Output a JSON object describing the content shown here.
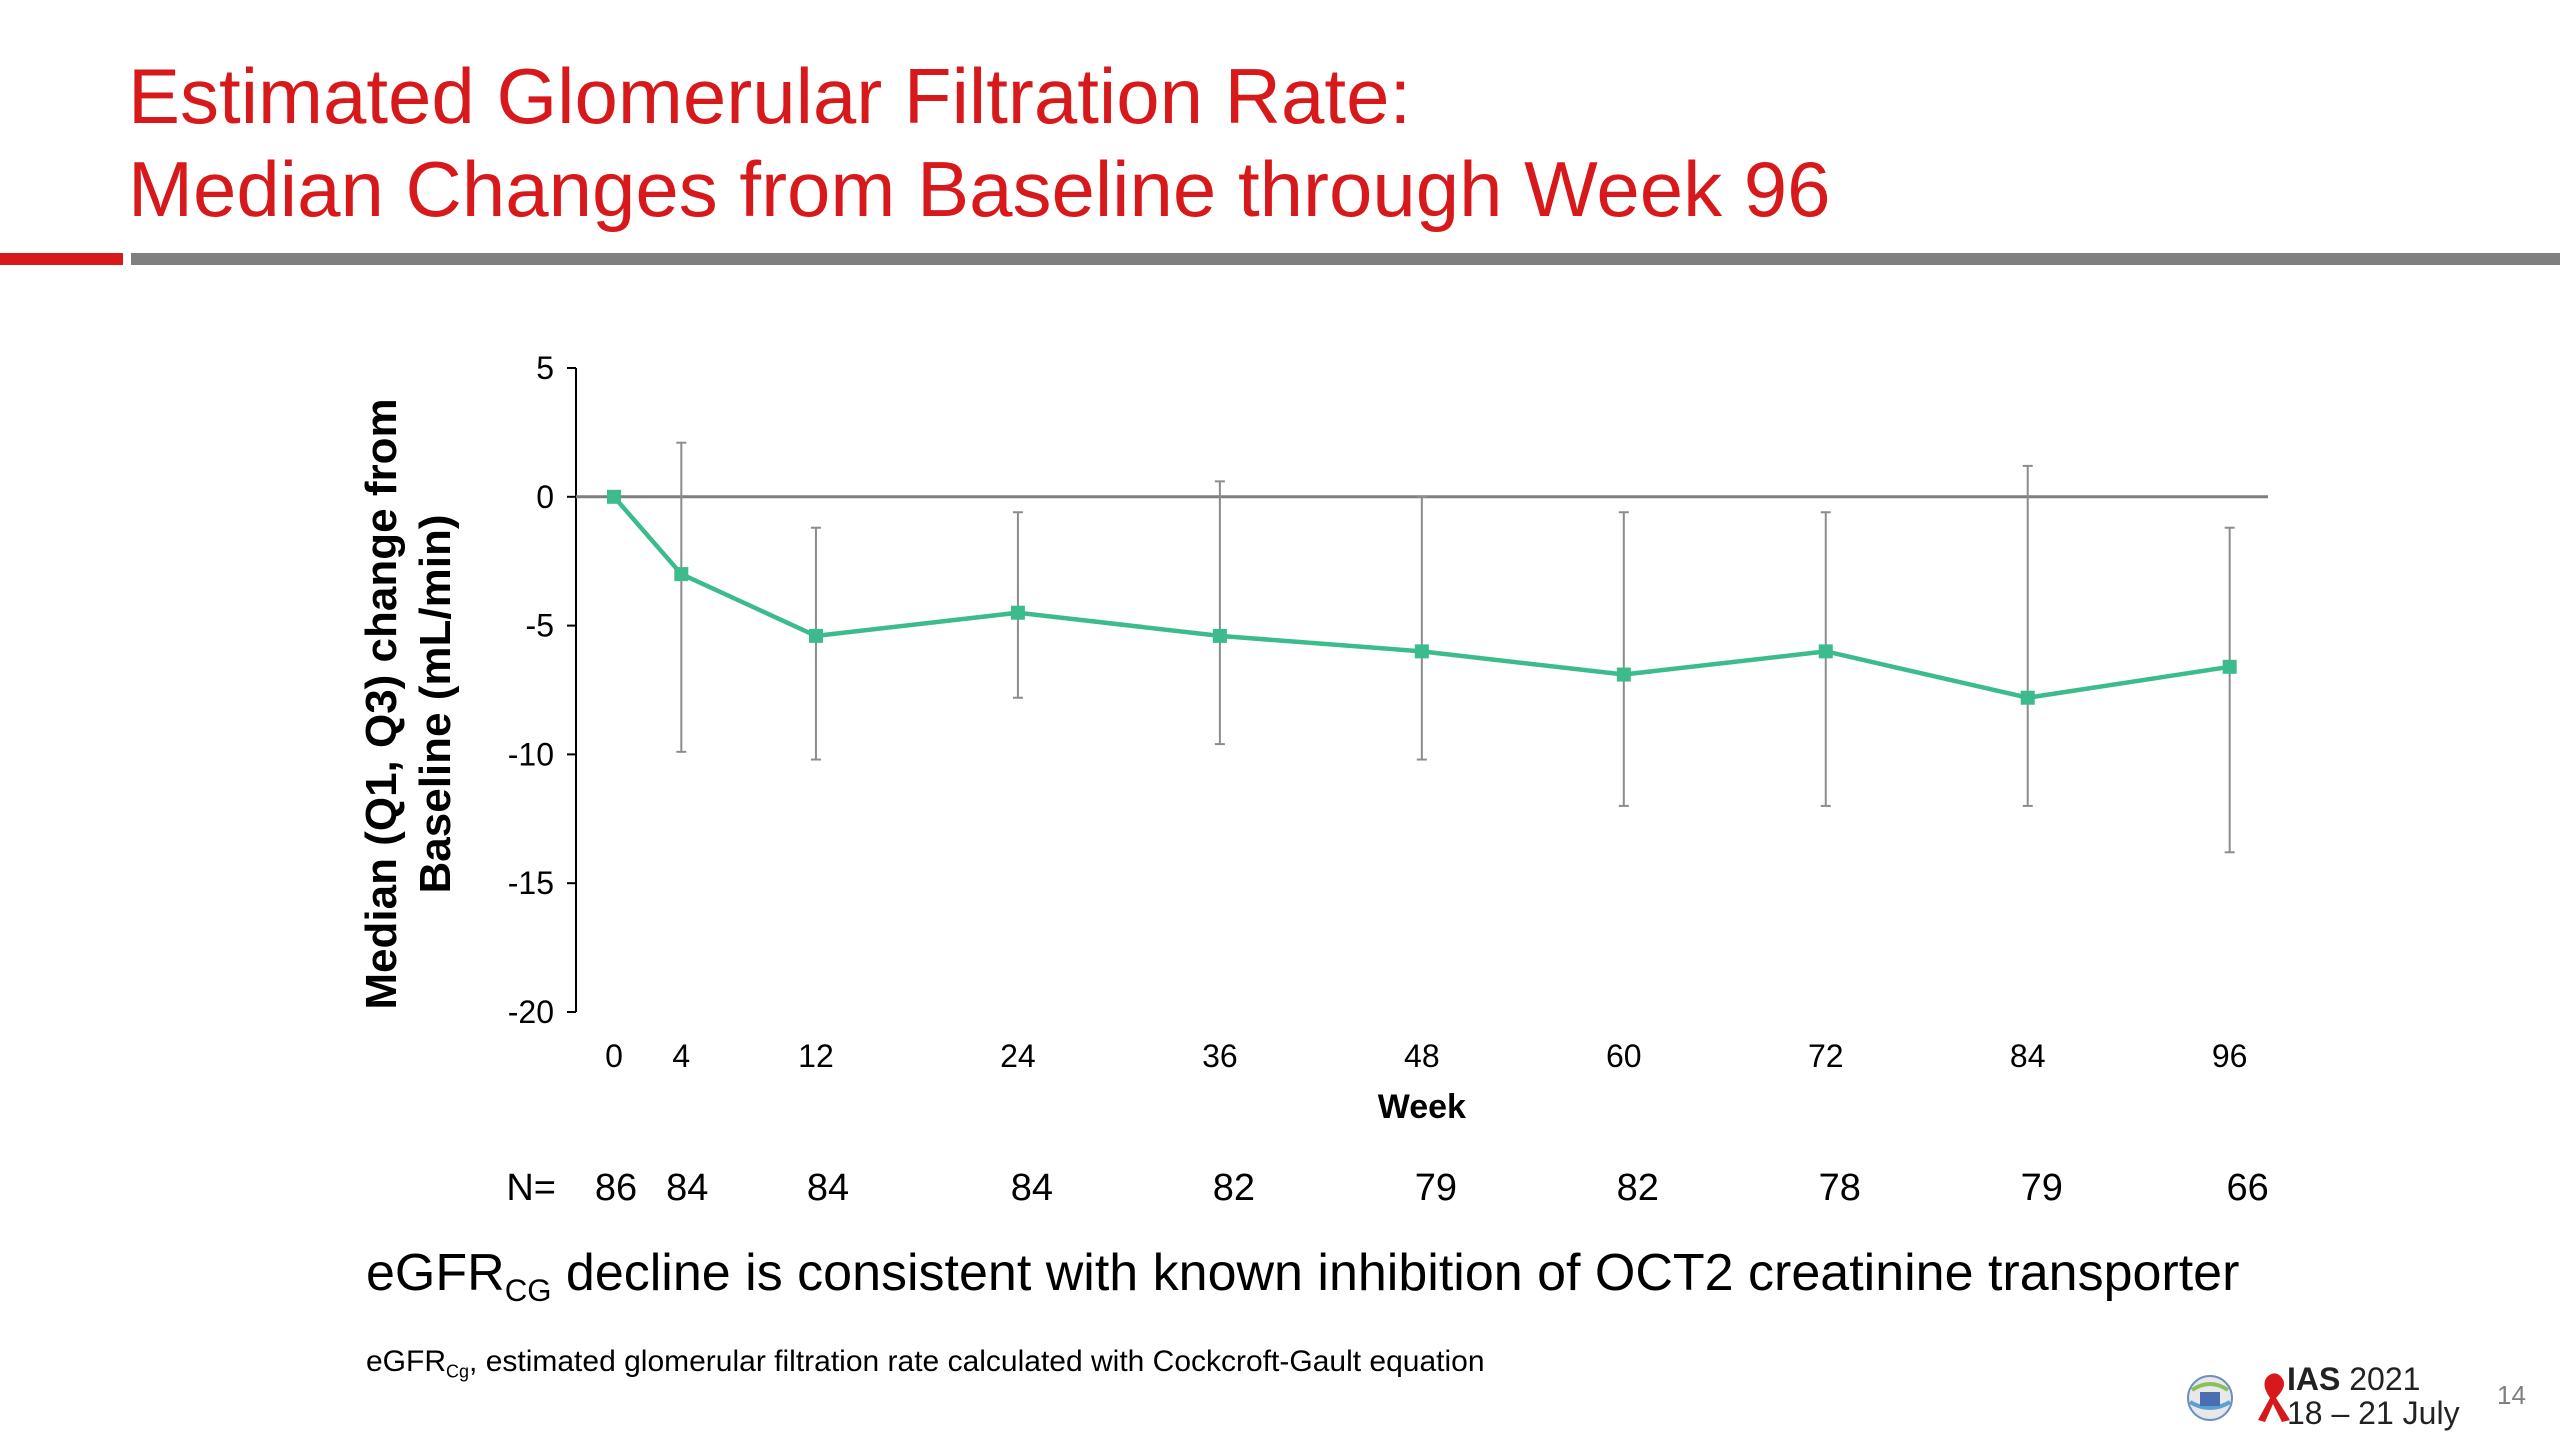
{
  "slide": {
    "title_line1": "Estimated Glomerular Filtration Rate:",
    "title_line2": "Median Changes from Baseline through Week 96",
    "accent_color": "#d7191c",
    "rule_color": "#7f7f7f",
    "footline_prefix": "eGFR",
    "footline_sub": "CG",
    "footline_rest": " decline is consistent with known inhibition of OCT2 creatinine transporter",
    "footnote_prefix": "eGFR",
    "footnote_sub": "Cg",
    "footnote_rest": ", estimated glomerular filtration rate calculated with Cockcroft-Gault equation",
    "page_number": "14",
    "logo": {
      "brand": "IAS",
      "year": "2021",
      "dates": "18 – 21 July",
      "ribbon_color": "#d7191c",
      "icon": "conference-globe-icon"
    }
  },
  "chart_data": {
    "type": "line",
    "ylabel_line1": "Median (Q1, Q3) change from",
    "ylabel_line2": "Baseline (mL/min)",
    "xlabel": "Week",
    "ylim": [
      -20,
      5
    ],
    "yticks": [
      5,
      0,
      -5,
      -10,
      -15,
      -20
    ],
    "x": [
      0,
      4,
      12,
      24,
      36,
      48,
      60,
      72,
      84,
      96
    ],
    "series": [
      {
        "color": "#3cbc8d",
        "values": [
          0,
          -3,
          -5.4,
          -4.5,
          -5.4,
          -6,
          -6.9,
          -6,
          -7.8,
          -6.6
        ],
        "q1": [
          0,
          -9.9,
          -10.2,
          -7.8,
          -9.6,
          -10.2,
          -12,
          -12,
          -12,
          -13.8
        ],
        "q3": [
          0,
          2.1,
          -1.2,
          -0.6,
          0.6,
          0,
          -0.6,
          -0.6,
          1.2,
          -1.2
        ]
      }
    ],
    "n_label": "N=",
    "n_values": [
      "86",
      "84",
      "84",
      "84",
      "82",
      "79",
      "82",
      "78",
      "79",
      "66"
    ],
    "reference_line": 0,
    "grid": false
  }
}
